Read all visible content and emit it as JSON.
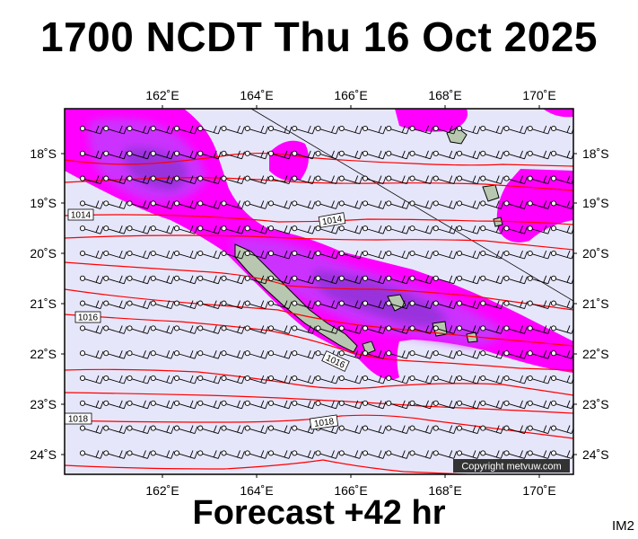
{
  "title": "1700 NCDT Thu 16 Oct 2025",
  "subtitle": "Forecast +42 hr",
  "image_code": "IM2",
  "copyright": "Copyright metvuw.com",
  "longitude_ticks": [
    "162˚E",
    "164˚E",
    "166˚E",
    "168˚E",
    "170˚E"
  ],
  "latitude_ticks": [
    "18˚S",
    "19˚S",
    "20˚S",
    "21˚S",
    "22˚S",
    "23˚S",
    "24˚S"
  ],
  "isobar_labels": [
    "1014",
    "1014",
    "1016",
    "1016",
    "1018",
    "1018"
  ],
  "colors": {
    "background": "#e6e6fb",
    "rain_light": "#ff00ff",
    "rain_medium": "#cc33ff",
    "rain_heavy": "#9933dd",
    "rain_very_heavy": "#7722cc",
    "isobar": "#ff0000",
    "land": "#b8c8b0"
  }
}
